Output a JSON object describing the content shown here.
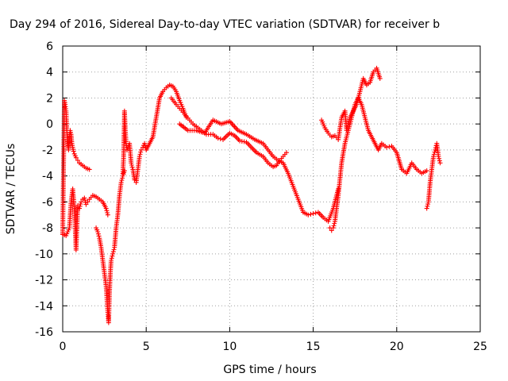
{
  "chart_data": {
    "type": "scatter",
    "title": "Day 294 of 2016, Sidereal Day-to-day VTEC variation (SDTVAR) for receiver b",
    "xlabel": "GPS time / hours",
    "ylabel": "SDTVAR / TECUs",
    "xlim": [
      0,
      25
    ],
    "ylim": [
      -16,
      6
    ],
    "xticks": [
      0,
      5,
      10,
      15,
      20,
      25
    ],
    "yticks": [
      -16,
      -14,
      -12,
      -10,
      -8,
      -6,
      -4,
      -2,
      0,
      2,
      4,
      6
    ],
    "grid": true,
    "marker": "plus",
    "color": "#ff0000",
    "series": [
      {
        "x": [
          0.0,
          0.1,
          0.15,
          0.2,
          0.25,
          0.3,
          0.35,
          0.4,
          0.45,
          0.5,
          0.55,
          0.6,
          0.65,
          0.7,
          0.8,
          0.9,
          1.0,
          1.2,
          1.4,
          1.6
        ],
        "values": [
          -8.5,
          1.8,
          1.5,
          1.0,
          -0.5,
          -1.5,
          -2.0,
          -1.0,
          -0.5,
          -0.8,
          -1.5,
          -1.8,
          -2.1,
          -2.3,
          -2.6,
          -2.8,
          -3.0,
          -3.2,
          -3.4,
          -3.5
        ]
      },
      {
        "x": [
          0.0,
          0.2,
          0.4,
          0.5,
          0.6,
          0.7,
          0.8,
          0.9,
          1.0,
          1.1,
          1.2,
          1.3,
          1.4,
          1.5,
          1.6,
          1.8,
          2.0,
          2.2,
          2.4,
          2.6,
          2.7
        ],
        "values": [
          -8.5,
          -8.6,
          -8.0,
          -6.0,
          -5.0,
          -6.5,
          -9.7,
          -6.3,
          -6.5,
          -6.0,
          -5.8,
          -5.7,
          -6.2,
          -6.0,
          -5.8,
          -5.5,
          -5.6,
          -5.8,
          -6.0,
          -6.5,
          -7.0
        ]
      },
      {
        "x": [
          2.0,
          2.1,
          2.2,
          2.3,
          2.4,
          2.5,
          2.6,
          2.7,
          2.75,
          2.8,
          2.85,
          2.9,
          3.0,
          3.1,
          3.2,
          3.3,
          3.4,
          3.5,
          3.6,
          3.7
        ],
        "values": [
          -8.0,
          -8.3,
          -8.8,
          -9.5,
          -10.5,
          -11.5,
          -12.5,
          -14.5,
          -15.3,
          -13.0,
          -11.5,
          -10.5,
          -10.0,
          -9.5,
          -8.0,
          -7.0,
          -5.5,
          -4.5,
          -4.0,
          -3.6
        ]
      },
      {
        "x": [
          3.6,
          3.65,
          3.7,
          3.75,
          3.8,
          3.85,
          3.9,
          4.0,
          4.1,
          4.2,
          4.3,
          4.4,
          4.5,
          4.6,
          4.7,
          4.8,
          4.9,
          5.0,
          5.2,
          5.4,
          5.6,
          5.8,
          6.0,
          6.2,
          6.4,
          6.6,
          6.8,
          7.0,
          7.2,
          7.4
        ],
        "values": [
          -3.8,
          -2.5,
          1.0,
          -0.5,
          -1.5,
          -2.0,
          -1.8,
          -1.5,
          -3.0,
          -3.5,
          -4.3,
          -4.5,
          -3.5,
          -2.5,
          -2.0,
          -1.8,
          -1.5,
          -2.0,
          -1.5,
          -1.0,
          0.5,
          2.0,
          2.5,
          2.8,
          3.0,
          2.9,
          2.5,
          1.8,
          1.2,
          0.5
        ]
      },
      {
        "x": [
          6.5,
          6.8,
          7.0,
          7.2,
          7.4,
          7.6,
          7.8,
          8.0,
          8.3,
          8.6,
          9.0,
          9.3,
          9.6,
          10.0,
          10.3,
          10.6,
          11.0,
          11.3,
          11.6,
          12.0,
          12.3,
          12.6,
          12.8,
          13.0,
          13.2,
          13.4
        ],
        "values": [
          2.0,
          1.5,
          1.2,
          0.9,
          0.6,
          0.3,
          0.0,
          -0.2,
          -0.5,
          -0.8,
          -0.8,
          -1.1,
          -1.2,
          -0.7,
          -0.9,
          -1.3,
          -1.4,
          -1.8,
          -2.2,
          -2.5,
          -3.0,
          -3.3,
          -3.2,
          -2.8,
          -2.5,
          -2.2
        ]
      },
      {
        "x": [
          7.0,
          7.5,
          8.0,
          8.5,
          9.0,
          9.5,
          10.0,
          10.5,
          11.0,
          11.5,
          12.0,
          12.3,
          12.6,
          12.9,
          13.2,
          13.5,
          13.8,
          14.1,
          14.4,
          14.7,
          15.0,
          15.3,
          15.6,
          15.9,
          16.2,
          16.5
        ],
        "values": [
          0.0,
          -0.5,
          -0.5,
          -0.7,
          0.3,
          0.0,
          0.2,
          -0.5,
          -0.8,
          -1.2,
          -1.5,
          -2.0,
          -2.5,
          -2.8,
          -3.0,
          -3.8,
          -4.8,
          -5.8,
          -6.8,
          -7.0,
          -6.9,
          -6.8,
          -7.2,
          -7.5,
          -6.5,
          -5.0
        ]
      },
      {
        "x": [
          15.5,
          15.7,
          15.9,
          16.1,
          16.3,
          16.5,
          16.7,
          16.9,
          17.0,
          17.2,
          17.4,
          17.6,
          17.8,
          18.0,
          18.2,
          18.4,
          18.6,
          18.8,
          19.0
        ],
        "values": [
          0.3,
          -0.3,
          -0.7,
          -1.0,
          -0.9,
          -1.2,
          0.5,
          1.0,
          -0.5,
          0.5,
          1.0,
          1.5,
          2.5,
          3.5,
          3.0,
          3.2,
          4.0,
          4.3,
          3.5
        ]
      },
      {
        "x": [
          16.0,
          16.1,
          16.2,
          16.3,
          16.5,
          16.7,
          16.9,
          17.1,
          17.3,
          17.5,
          17.7,
          17.9,
          18.1,
          18.3,
          18.5,
          18.7,
          18.9,
          19.1,
          19.4,
          19.7,
          20.0,
          20.3,
          20.6,
          20.9,
          21.2,
          21.5,
          21.8
        ],
        "values": [
          -8.0,
          -8.2,
          -8.0,
          -7.5,
          -5.5,
          -3.0,
          -1.5,
          -0.5,
          0.5,
          1.5,
          2.0,
          1.5,
          0.5,
          -0.5,
          -1.0,
          -1.5,
          -2.0,
          -1.5,
          -1.8,
          -1.7,
          -2.2,
          -3.5,
          -3.8,
          -3.0,
          -3.5,
          -3.8,
          -3.6
        ]
      },
      {
        "x": [
          21.8,
          21.9,
          22.0,
          22.1,
          22.2,
          22.3,
          22.4,
          22.5,
          22.6
        ],
        "values": [
          -6.5,
          -6.0,
          -4.5,
          -3.5,
          -2.5,
          -2.0,
          -1.5,
          -2.5,
          -3.0
        ]
      }
    ]
  }
}
